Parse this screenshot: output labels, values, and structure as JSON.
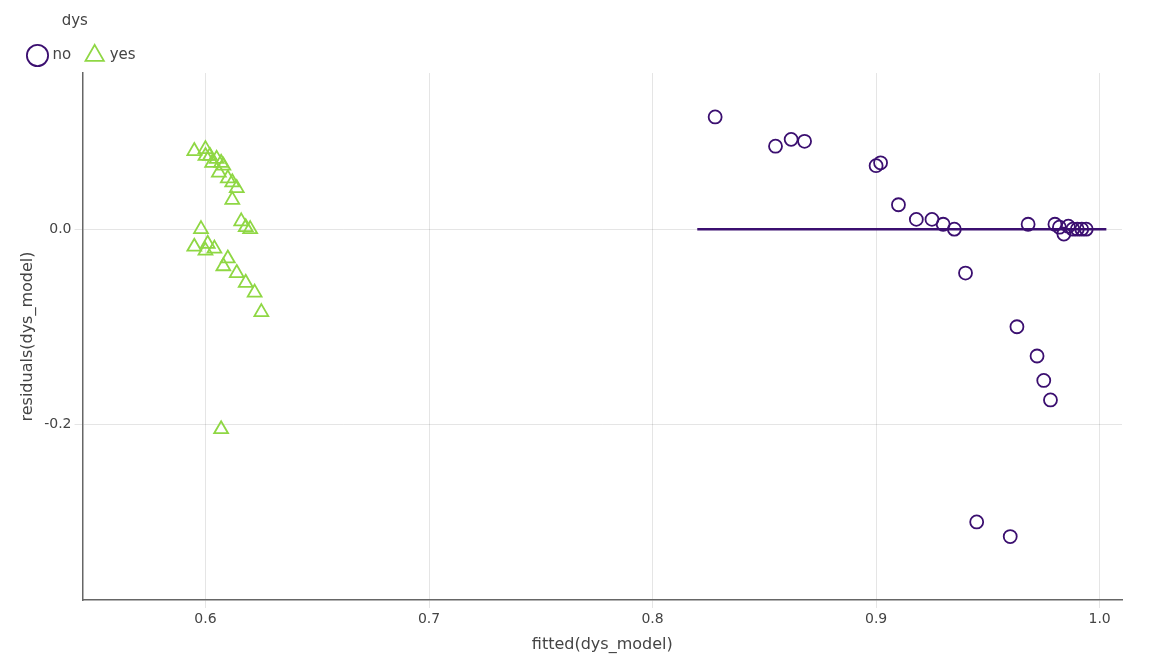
{
  "chart_data": {
    "type": "scatter",
    "x_label": "fitted(dys_model)",
    "y_label": "residuals(dys_model)",
    "legend_title": "dys",
    "legend": "top left",
    "grid": true,
    "xlim": [
      0.545,
      1.01
    ],
    "ylim": [
      -0.38,
      0.16
    ],
    "xticks": [
      0.6,
      0.7,
      0.8,
      0.9,
      {
        "value": 1.0,
        "label": "1.0"
      }
    ],
    "yticks": [
      {
        "value": 0.0,
        "label": "0.0"
      },
      -0.2
    ],
    "series": [
      {
        "name": "no",
        "color": "#3B0F70",
        "marker": "circle",
        "x": [
          0.828,
          0.855,
          0.862,
          0.868,
          0.9,
          0.902,
          0.91,
          0.918,
          0.925,
          0.93,
          0.935,
          0.94,
          0.945,
          0.96,
          0.963,
          0.968,
          0.972,
          0.975,
          0.978,
          0.98,
          0.982,
          0.984,
          0.986,
          0.988,
          0.99,
          0.992,
          0.994
        ],
        "values": [
          0.115,
          0.085,
          0.092,
          0.09,
          0.065,
          0.068,
          0.025,
          0.01,
          0.01,
          0.005,
          0.0,
          -0.045,
          -0.3,
          -0.315,
          -0.1,
          0.005,
          -0.13,
          -0.155,
          -0.175,
          0.005,
          0.002,
          -0.005,
          0.003,
          0.0,
          0.0,
          0.0,
          0.0
        ]
      },
      {
        "name": "yes",
        "color": "#8FD744",
        "marker": "triangle",
        "x": [
          0.595,
          0.6,
          0.602,
          0.605,
          0.607,
          0.608,
          0.61,
          0.612,
          0.614,
          0.616,
          0.618,
          0.62,
          0.6,
          0.603,
          0.606,
          0.598,
          0.601,
          0.604,
          0.608,
          0.61,
          0.614,
          0.618,
          0.622,
          0.625,
          0.595,
          0.6,
          0.607,
          0.612
        ],
        "values": [
          0.08,
          0.082,
          0.075,
          0.072,
          0.068,
          0.065,
          0.052,
          0.048,
          0.042,
          0.008,
          0.002,
          0.0,
          0.075,
          0.068,
          0.058,
          0.0,
          -0.015,
          -0.02,
          -0.038,
          -0.03,
          -0.045,
          -0.055,
          -0.065,
          -0.085,
          -0.018,
          -0.022,
          -0.205,
          0.03
        ]
      },
      {
        "type": "line",
        "color": "#3B0F70",
        "line_style": "solid",
        "x": [
          0.82,
          1.003
        ],
        "values": [
          0.0,
          0.0
        ]
      }
    ]
  }
}
